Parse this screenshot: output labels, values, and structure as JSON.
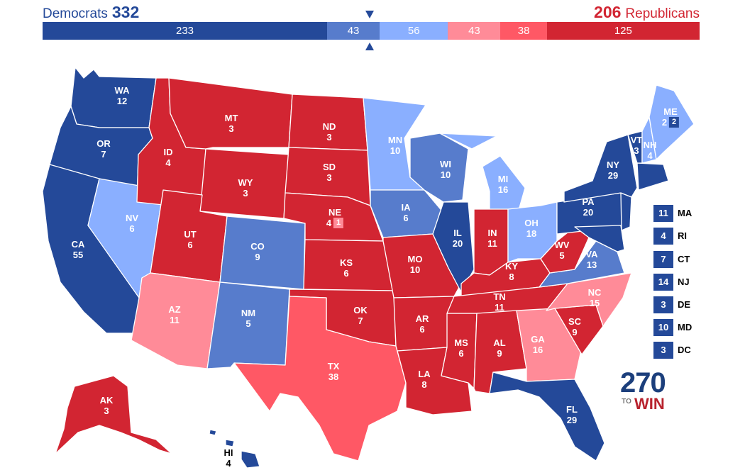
{
  "header": {
    "dem_label": "Democrats",
    "dem_total": "332",
    "rep_total": "206",
    "rep_label": "Republicans"
  },
  "bar_segments": [
    {
      "value": "233",
      "color": "#244999"
    },
    {
      "value": "43",
      "color": "#577ccc"
    },
    {
      "value": "56",
      "color": "#8aafff"
    },
    {
      "value": "43",
      "color": "#ff8b98"
    },
    {
      "value": "38",
      "color": "#ff5865"
    },
    {
      "value": "125",
      "color": "#d22532"
    }
  ],
  "colors": {
    "safe_dem": "#244999",
    "likely_dem": "#577ccc",
    "lean_dem": "#8aafff",
    "lean_rep": "#ff8b98",
    "likely_rep": "#ff5865",
    "safe_rep": "#d22532"
  },
  "states": {
    "WA": {
      "abbr": "WA",
      "ev": "12"
    },
    "OR": {
      "abbr": "OR",
      "ev": "7"
    },
    "CA": {
      "abbr": "CA",
      "ev": "55"
    },
    "NV": {
      "abbr": "NV",
      "ev": "6"
    },
    "ID": {
      "abbr": "ID",
      "ev": "4"
    },
    "MT": {
      "abbr": "MT",
      "ev": "3"
    },
    "WY": {
      "abbr": "WY",
      "ev": "3"
    },
    "UT": {
      "abbr": "UT",
      "ev": "6"
    },
    "AZ": {
      "abbr": "AZ",
      "ev": "11"
    },
    "CO": {
      "abbr": "CO",
      "ev": "9"
    },
    "NM": {
      "abbr": "NM",
      "ev": "5"
    },
    "ND": {
      "abbr": "ND",
      "ev": "3"
    },
    "SD": {
      "abbr": "SD",
      "ev": "3"
    },
    "NE": {
      "abbr": "NE",
      "ev": "4",
      "extra": "1"
    },
    "KS": {
      "abbr": "KS",
      "ev": "6"
    },
    "OK": {
      "abbr": "OK",
      "ev": "7"
    },
    "TX": {
      "abbr": "TX",
      "ev": "38"
    },
    "MN": {
      "abbr": "MN",
      "ev": "10"
    },
    "IA": {
      "abbr": "IA",
      "ev": "6"
    },
    "MO": {
      "abbr": "MO",
      "ev": "10"
    },
    "AR": {
      "abbr": "AR",
      "ev": "6"
    },
    "LA": {
      "abbr": "LA",
      "ev": "8"
    },
    "WI": {
      "abbr": "WI",
      "ev": "10"
    },
    "IL": {
      "abbr": "IL",
      "ev": "20"
    },
    "MS": {
      "abbr": "MS",
      "ev": "6"
    },
    "MI": {
      "abbr": "MI",
      "ev": "16"
    },
    "IN": {
      "abbr": "IN",
      "ev": "11"
    },
    "KY": {
      "abbr": "KY",
      "ev": "8"
    },
    "TN": {
      "abbr": "TN",
      "ev": "11"
    },
    "AL": {
      "abbr": "AL",
      "ev": "9"
    },
    "OH": {
      "abbr": "OH",
      "ev": "18"
    },
    "WV": {
      "abbr": "WV",
      "ev": "5"
    },
    "GA": {
      "abbr": "GA",
      "ev": "16"
    },
    "FL": {
      "abbr": "FL",
      "ev": "29"
    },
    "SC": {
      "abbr": "SC",
      "ev": "9"
    },
    "NC": {
      "abbr": "NC",
      "ev": "15"
    },
    "VA": {
      "abbr": "VA",
      "ev": "13"
    },
    "PA": {
      "abbr": "PA",
      "ev": "20"
    },
    "NY": {
      "abbr": "NY",
      "ev": "29"
    },
    "VT": {
      "abbr": "VT",
      "ev": "3"
    },
    "NH": {
      "abbr": "NH",
      "ev": "4"
    },
    "ME": {
      "abbr": "ME",
      "ev": "2",
      "extra": "2"
    },
    "AK": {
      "abbr": "AK",
      "ev": "3"
    },
    "HI": {
      "abbr": "HI",
      "ev": "4"
    }
  },
  "small_states": [
    {
      "ev": "11",
      "abbr": "MA"
    },
    {
      "ev": "4",
      "abbr": "RI"
    },
    {
      "ev": "7",
      "abbr": "CT"
    },
    {
      "ev": "14",
      "abbr": "NJ"
    },
    {
      "ev": "3",
      "abbr": "DE"
    },
    {
      "ev": "10",
      "abbr": "MD"
    },
    {
      "ev": "3",
      "abbr": "DC"
    }
  ],
  "logo": {
    "number": "270",
    "to": "TO",
    "win": "WIN"
  }
}
